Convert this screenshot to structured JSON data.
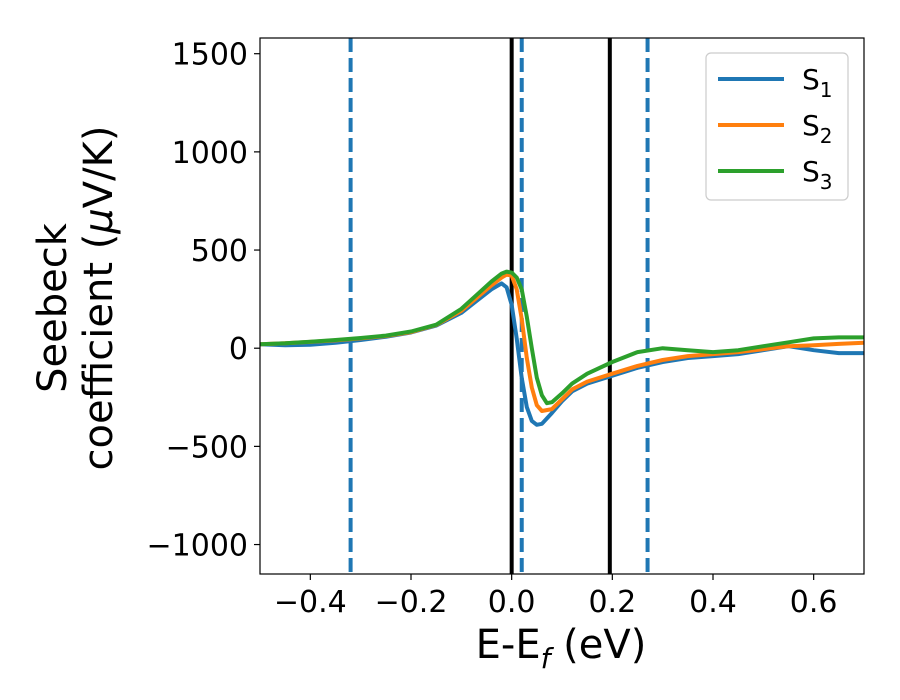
{
  "chart_data": {
    "type": "line",
    "xlabel": "E-E",
    "xlabel_sub": "f",
    "xlabel_unit": " (eV)",
    "ylabel_line1": "Seebeck",
    "ylabel_line2_pre": "coefficient  (",
    "ylabel_line2_mu": "μ",
    "ylabel_line2_post": "V/K)",
    "xlim": [
      -0.5,
      0.7
    ],
    "ylim": [
      -1150,
      1580
    ],
    "xticks": [
      -0.4,
      -0.2,
      0.0,
      0.2,
      0.4,
      0.6
    ],
    "xtick_labels": [
      "−0.4",
      "−0.2",
      "0.0",
      "0.2",
      "0.4",
      "0.6"
    ],
    "yticks": [
      -1000,
      -500,
      0,
      500,
      1000,
      1500
    ],
    "ytick_labels": [
      "−1000",
      "−500",
      "0",
      "500",
      "1000",
      "1500"
    ],
    "grid": false,
    "legend_position": "top-right",
    "series": [
      {
        "name": "S",
        "sub": "1",
        "color": "#1f77b4",
        "x": [
          -0.5,
          -0.45,
          -0.4,
          -0.35,
          -0.3,
          -0.25,
          -0.2,
          -0.15,
          -0.1,
          -0.07,
          -0.04,
          -0.02,
          -0.01,
          0.0,
          0.01,
          0.02,
          0.03,
          0.04,
          0.05,
          0.06,
          0.08,
          0.1,
          0.12,
          0.15,
          0.2,
          0.25,
          0.3,
          0.35,
          0.4,
          0.45,
          0.5,
          0.55,
          0.6,
          0.65,
          0.7
        ],
        "y": [
          20,
          15,
          18,
          28,
          42,
          58,
          80,
          115,
          180,
          240,
          300,
          330,
          310,
          220,
          50,
          -150,
          -300,
          -370,
          -390,
          -385,
          -330,
          -270,
          -220,
          -180,
          -140,
          -100,
          -70,
          -50,
          -40,
          -30,
          -10,
          10,
          -10,
          -25,
          -25
        ]
      },
      {
        "name": "S",
        "sub": "2",
        "color": "#ff7f0e",
        "x": [
          -0.5,
          -0.45,
          -0.4,
          -0.35,
          -0.3,
          -0.25,
          -0.2,
          -0.15,
          -0.1,
          -0.07,
          -0.04,
          -0.02,
          -0.01,
          0.0,
          0.01,
          0.02,
          0.03,
          0.04,
          0.05,
          0.06,
          0.08,
          0.1,
          0.12,
          0.15,
          0.2,
          0.25,
          0.3,
          0.35,
          0.4,
          0.45,
          0.5,
          0.55,
          0.6,
          0.65,
          0.7
        ],
        "y": [
          20,
          25,
          32,
          40,
          50,
          62,
          82,
          118,
          190,
          255,
          320,
          360,
          375,
          370,
          300,
          150,
          -50,
          -200,
          -290,
          -320,
          -310,
          -260,
          -210,
          -170,
          -130,
          -90,
          -60,
          -40,
          -30,
          -20,
          -5,
          10,
          15,
          22,
          28
        ]
      },
      {
        "name": "S",
        "sub": "3",
        "color": "#2ca02c",
        "x": [
          -0.5,
          -0.45,
          -0.4,
          -0.35,
          -0.3,
          -0.25,
          -0.2,
          -0.15,
          -0.1,
          -0.07,
          -0.04,
          -0.02,
          -0.01,
          0.0,
          0.01,
          0.02,
          0.03,
          0.04,
          0.05,
          0.06,
          0.07,
          0.08,
          0.1,
          0.12,
          0.15,
          0.2,
          0.25,
          0.3,
          0.35,
          0.4,
          0.45,
          0.5,
          0.55,
          0.6,
          0.65,
          0.7
        ],
        "y": [
          20,
          25,
          33,
          42,
          52,
          64,
          85,
          120,
          200,
          270,
          340,
          380,
          390,
          385,
          360,
          300,
          160,
          0,
          -150,
          -240,
          -280,
          -275,
          -230,
          -180,
          -130,
          -70,
          -20,
          0,
          -10,
          -20,
          -10,
          10,
          30,
          50,
          55,
          55
        ]
      }
    ],
    "vlines": [
      {
        "x": -0.32,
        "style": "dashed",
        "color": "#1f77b4"
      },
      {
        "x": 0.0,
        "style": "solid",
        "color": "#000000"
      },
      {
        "x": 0.02,
        "style": "dashed",
        "color": "#1f77b4"
      },
      {
        "x": 0.195,
        "style": "solid",
        "color": "#000000"
      },
      {
        "x": 0.27,
        "style": "dashed",
        "color": "#1f77b4"
      }
    ]
  }
}
